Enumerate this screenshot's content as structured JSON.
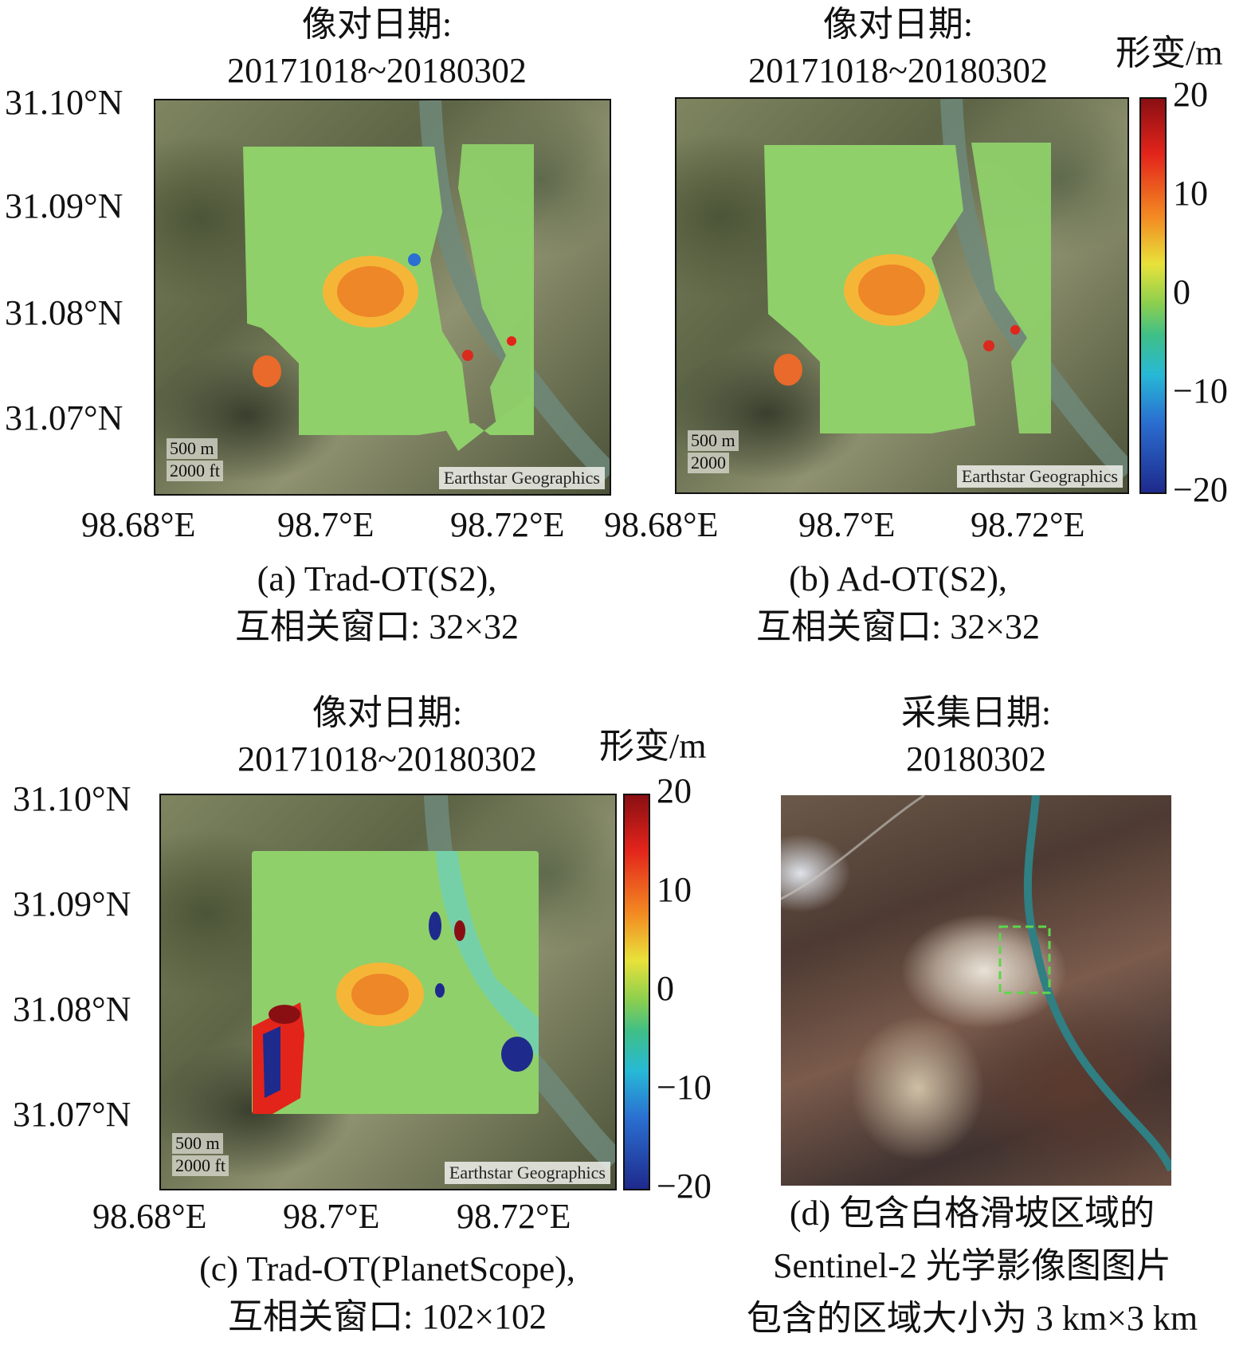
{
  "panel_a": {
    "title_line1": "像对日期:",
    "title_line2": "20171018~20180302",
    "caption_line1": "(a) Trad-OT(S2),",
    "caption_line2": "互相关窗口: 32×32",
    "scale_m": "500 m",
    "scale_ft": "2000 ft",
    "attribution": "Earthstar Geographics",
    "y_ticks": [
      "31.10°N",
      "31.09°N",
      "31.08°N",
      "31.07°N"
    ],
    "x_ticks": [
      "98.68°E",
      "98.7°E",
      "98.72°E"
    ]
  },
  "panel_b": {
    "title_line1": "像对日期:",
    "title_line2": "20171018~20180302",
    "caption_line1": "(b) Ad-OT(S2),",
    "caption_line2": "互相关窗口: 32×32",
    "scale_m": "500 m",
    "scale_ft": "2000",
    "attribution": "Earthstar Geographics",
    "x_ticks": [
      "98.68°E",
      "98.7°E",
      "98.72°E"
    ]
  },
  "panel_c": {
    "title_line1": "像对日期:",
    "title_line2": "20171018~20180302",
    "caption_line1": "(c) Trad-OT(PlanetScope),",
    "caption_line2": "互相关窗口: 102×102",
    "scale_m": "500 m",
    "scale_ft": "2000 ft",
    "attribution": "Earthstar Geographics",
    "y_ticks": [
      "31.10°N",
      "31.09°N",
      "31.08°N",
      "31.07°N"
    ],
    "x_ticks": [
      "98.68°E",
      "98.7°E",
      "98.72°E"
    ]
  },
  "panel_d": {
    "title_line1": "采集日期:",
    "title_line2": "20180302",
    "caption_line1": "(d) 包含白格滑坡区域的",
    "caption_line2": "Sentinel-2 光学影像图图片",
    "caption_line3": "包含的区域大小为 3 km×3 km"
  },
  "colorbar": {
    "label": "形变/m",
    "ticks": [
      "20",
      "10",
      "0",
      "−10",
      "−20"
    ],
    "range": [
      -20,
      20
    ]
  },
  "chart_data": {
    "type": "heatmap",
    "colorbar_label": "形变/m",
    "color_range": [
      -20,
      20
    ],
    "colorbar_ticks": [
      20,
      10,
      0,
      -10,
      -20
    ],
    "x_ticks": [
      "98.68°E",
      "98.7°E",
      "98.72°E"
    ],
    "y_ticks": [
      "31.10°N",
      "31.09°N",
      "31.08°N",
      "31.07°N"
    ],
    "colors": {
      "high": "#8a0f13",
      "mid": "#8ccf4e",
      "low": "#1e2a8c",
      "background_field": "#8fd06a",
      "uplift_zone": "#f08a2a"
    }
  }
}
